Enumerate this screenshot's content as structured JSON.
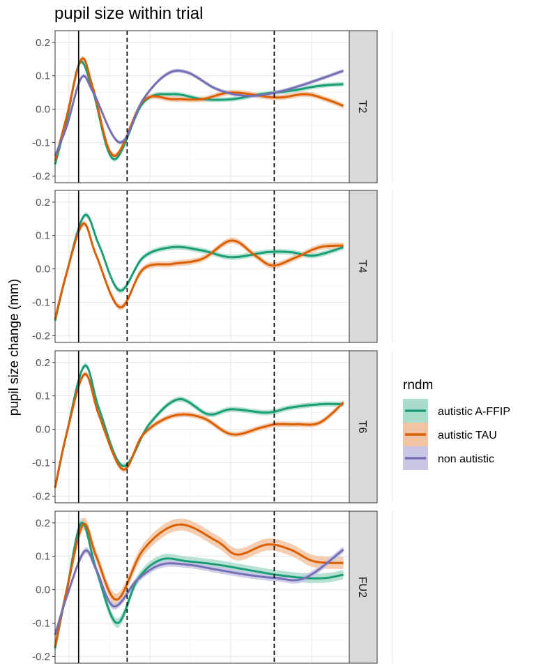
{
  "chart_data": {
    "type": "line",
    "title": "pupil size within trial",
    "xlabel": "",
    "ylabel": "pupil size change (mm)",
    "x_range": [
      0,
      1
    ],
    "ylim": [
      -0.22,
      0.235
    ],
    "yticks": [
      -0.2,
      -0.1,
      0.0,
      0.1,
      0.2
    ],
    "ytick_labels": [
      "-0.2",
      "-0.1",
      "0.0",
      "0.1",
      "0.2"
    ],
    "vlines": [
      {
        "x": 0.08,
        "style": "solid"
      },
      {
        "x": 0.245,
        "style": "dashed"
      },
      {
        "x": 0.745,
        "style": "dashed"
      }
    ],
    "grid": true,
    "legend": {
      "title": "rndm",
      "position": "right",
      "entries": [
        {
          "label": "autistic A-FFIP",
          "color": "#1b9e77",
          "fill": "#a9dccb"
        },
        {
          "label": "autistic TAU",
          "color": "#d95f02",
          "fill": "#f3c4a3"
        },
        {
          "label": "non autistic",
          "color": "#7570b3",
          "fill": "#c9c6e6"
        }
      ]
    },
    "panels": [
      {
        "strip": "T2",
        "series": [
          {
            "series_index": 0,
            "se": 0.007,
            "points": [
              [
                0,
                -0.165
              ],
              [
                0.04,
                -0.03
              ],
              [
                0.085,
                0.14
              ],
              [
                0.13,
                0.05
              ],
              [
                0.2,
                -0.15
              ],
              [
                0.3,
                0.02
              ],
              [
                0.4,
                0.045
              ],
              [
                0.5,
                0.03
              ],
              [
                0.6,
                0.03
              ],
              [
                0.7,
                0.045
              ],
              [
                0.8,
                0.055
              ],
              [
                0.9,
                0.07
              ],
              [
                0.98,
                0.075
              ]
            ]
          },
          {
            "series_index": 1,
            "se": 0.008,
            "points": [
              [
                0,
                -0.155
              ],
              [
                0.04,
                -0.02
              ],
              [
                0.09,
                0.15
              ],
              [
                0.13,
                0.06
              ],
              [
                0.2,
                -0.14
              ],
              [
                0.3,
                0.025
              ],
              [
                0.4,
                0.03
              ],
              [
                0.5,
                0.03
              ],
              [
                0.6,
                0.05
              ],
              [
                0.75,
                0.035
              ],
              [
                0.85,
                0.045
              ],
              [
                0.92,
                0.03
              ],
              [
                0.98,
                0.01
              ]
            ]
          },
          {
            "series_index": 2,
            "se": 0.006,
            "points": [
              [
                0,
                -0.14
              ],
              [
                0.04,
                -0.05
              ],
              [
                0.09,
                0.095
              ],
              [
                0.13,
                0.05
              ],
              [
                0.22,
                -0.1
              ],
              [
                0.3,
                0.03
              ],
              [
                0.38,
                0.105
              ],
              [
                0.45,
                0.11
              ],
              [
                0.55,
                0.06
              ],
              [
                0.65,
                0.04
              ],
              [
                0.75,
                0.05
              ],
              [
                0.85,
                0.075
              ],
              [
                0.98,
                0.115
              ]
            ]
          }
        ]
      },
      {
        "strip": "T4",
        "series": [
          {
            "series_index": 0,
            "se": 0.008,
            "points": [
              [
                0,
                -0.155
              ],
              [
                0.04,
                -0.01
              ],
              [
                0.1,
                0.16
              ],
              [
                0.15,
                0.07
              ],
              [
                0.22,
                -0.065
              ],
              [
                0.3,
                0.035
              ],
              [
                0.4,
                0.065
              ],
              [
                0.5,
                0.055
              ],
              [
                0.6,
                0.035
              ],
              [
                0.72,
                0.05
              ],
              [
                0.8,
                0.05
              ],
              [
                0.88,
                0.04
              ],
              [
                0.98,
                0.065
              ]
            ]
          },
          {
            "series_index": 1,
            "se": 0.009,
            "points": [
              [
                0,
                -0.15
              ],
              [
                0.04,
                -0.01
              ],
              [
                0.095,
                0.135
              ],
              [
                0.14,
                0.04
              ],
              [
                0.22,
                -0.115
              ],
              [
                0.3,
                0.0
              ],
              [
                0.4,
                0.015
              ],
              [
                0.5,
                0.03
              ],
              [
                0.6,
                0.085
              ],
              [
                0.68,
                0.04
              ],
              [
                0.74,
                0.01
              ],
              [
                0.82,
                0.035
              ],
              [
                0.9,
                0.065
              ],
              [
                0.98,
                0.07
              ]
            ]
          }
        ]
      },
      {
        "strip": "T6",
        "series": [
          {
            "series_index": 0,
            "se": 0.008,
            "points": [
              [
                0,
                -0.175
              ],
              [
                0.04,
                -0.01
              ],
              [
                0.1,
                0.19
              ],
              [
                0.15,
                0.06
              ],
              [
                0.23,
                -0.11
              ],
              [
                0.32,
                0.015
              ],
              [
                0.42,
                0.09
              ],
              [
                0.52,
                0.045
              ],
              [
                0.6,
                0.06
              ],
              [
                0.72,
                0.05
              ],
              [
                0.8,
                0.065
              ],
              [
                0.9,
                0.075
              ],
              [
                0.98,
                0.075
              ]
            ]
          },
          {
            "series_index": 1,
            "se": 0.008,
            "points": [
              [
                0,
                -0.175
              ],
              [
                0.04,
                -0.01
              ],
              [
                0.1,
                0.165
              ],
              [
                0.15,
                0.04
              ],
              [
                0.23,
                -0.12
              ],
              [
                0.3,
                -0.015
              ],
              [
                0.4,
                0.04
              ],
              [
                0.5,
                0.035
              ],
              [
                0.6,
                -0.015
              ],
              [
                0.7,
                0.005
              ],
              [
                0.75,
                0.015
              ],
              [
                0.82,
                0.015
              ],
              [
                0.9,
                0.02
              ],
              [
                0.98,
                0.08
              ]
            ]
          }
        ]
      },
      {
        "strip": "FU2",
        "series": [
          {
            "series_index": 0,
            "se": 0.014,
            "points": [
              [
                0,
                -0.175
              ],
              [
                0.04,
                0.0
              ],
              [
                0.09,
                0.2
              ],
              [
                0.14,
                0.06
              ],
              [
                0.21,
                -0.1
              ],
              [
                0.28,
                0.03
              ],
              [
                0.36,
                0.09
              ],
              [
                0.45,
                0.085
              ],
              [
                0.55,
                0.075
              ],
              [
                0.65,
                0.06
              ],
              [
                0.75,
                0.045
              ],
              [
                0.85,
                0.035
              ],
              [
                0.92,
                0.035
              ],
              [
                0.98,
                0.045
              ]
            ]
          },
          {
            "series_index": 1,
            "se": 0.018,
            "points": [
              [
                0,
                -0.17
              ],
              [
                0.04,
                0.0
              ],
              [
                0.095,
                0.195
              ],
              [
                0.14,
                0.1
              ],
              [
                0.21,
                -0.03
              ],
              [
                0.3,
                0.12
              ],
              [
                0.42,
                0.195
              ],
              [
                0.55,
                0.145
              ],
              [
                0.62,
                0.105
              ],
              [
                0.72,
                0.135
              ],
              [
                0.8,
                0.12
              ],
              [
                0.88,
                0.085
              ],
              [
                0.98,
                0.08
              ]
            ]
          },
          {
            "series_index": 2,
            "se": 0.01,
            "points": [
              [
                0,
                -0.135
              ],
              [
                0.04,
                -0.02
              ],
              [
                0.1,
                0.115
              ],
              [
                0.14,
                0.06
              ],
              [
                0.2,
                -0.05
              ],
              [
                0.28,
                0.03
              ],
              [
                0.36,
                0.075
              ],
              [
                0.45,
                0.075
              ],
              [
                0.55,
                0.06
              ],
              [
                0.65,
                0.045
              ],
              [
                0.75,
                0.035
              ],
              [
                0.85,
                0.035
              ],
              [
                0.98,
                0.12
              ]
            ]
          }
        ]
      }
    ]
  }
}
